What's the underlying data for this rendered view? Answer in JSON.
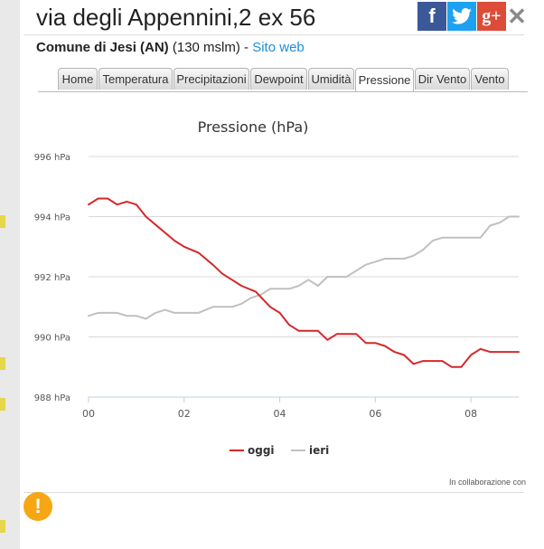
{
  "header": {
    "title": "via degli Appennini,2 ex 56",
    "comune": "Comune di Jesi (AN)",
    "altitude": "(130 mslm)",
    "separator": "-",
    "website_link": "Sito web"
  },
  "social": {
    "facebook_glyph": "f",
    "twitter_icon": "twitter-icon",
    "gplus_glyph": "g+",
    "close_glyph": "✕"
  },
  "tabs": [
    {
      "label": "Home"
    },
    {
      "label": "Temperatura"
    },
    {
      "label": "Precipitazioni"
    },
    {
      "label": "Dewpoint"
    },
    {
      "label": "Umidità"
    },
    {
      "label": "Pressione",
      "active": true
    },
    {
      "label": "Dir Vento"
    },
    {
      "label": "Vento"
    }
  ],
  "footer": {
    "credit": "In collaborazione con"
  },
  "alert_glyph": "!",
  "colors": {
    "oggi": "#d62728",
    "ieri": "#c0c0c0",
    "accent_link": "#1a8fd8",
    "alert": "#f7a614"
  },
  "chart_data": {
    "type": "line",
    "title": "Pressione (hPa)",
    "xlabel": "",
    "ylabel": "",
    "x_ticks": [
      "00",
      "02",
      "04",
      "06",
      "08"
    ],
    "y_ticks": [
      "988 hPa",
      "990 hPa",
      "992 hPa",
      "994 hPa",
      "996 hPa"
    ],
    "ylim": [
      988,
      996
    ],
    "xlim": [
      0,
      9
    ],
    "grid": true,
    "legend_position": "bottom",
    "series": [
      {
        "name": "oggi",
        "x": [
          0,
          0.2,
          0.4,
          0.6,
          0.8,
          1.0,
          1.2,
          1.5,
          1.8,
          2.0,
          2.3,
          2.6,
          2.8,
          3.0,
          3.2,
          3.5,
          3.8,
          4.0,
          4.2,
          4.4,
          4.6,
          4.8,
          5.0,
          5.2,
          5.4,
          5.6,
          5.8,
          6.0,
          6.2,
          6.4,
          6.6,
          6.8,
          7.0,
          7.2,
          7.4,
          7.6,
          7.8,
          8.0,
          8.2,
          8.4,
          8.6,
          8.8,
          9.0
        ],
        "values": [
          994.4,
          994.6,
          994.6,
          994.4,
          994.5,
          994.4,
          994.0,
          993.6,
          993.2,
          993.0,
          992.8,
          992.4,
          992.1,
          991.9,
          991.7,
          991.5,
          991.0,
          990.8,
          990.4,
          990.2,
          990.2,
          990.2,
          989.9,
          990.1,
          990.1,
          990.1,
          989.8,
          989.8,
          989.7,
          989.5,
          989.4,
          989.1,
          989.2,
          989.2,
          989.2,
          989.0,
          989.0,
          989.4,
          989.6,
          989.5,
          989.5,
          989.5,
          989.5
        ]
      },
      {
        "name": "ieri",
        "x": [
          0,
          0.2,
          0.4,
          0.6,
          0.8,
          1.0,
          1.2,
          1.4,
          1.6,
          1.8,
          2.0,
          2.3,
          2.6,
          2.8,
          3.0,
          3.2,
          3.4,
          3.6,
          3.8,
          4.0,
          4.2,
          4.4,
          4.6,
          4.8,
          5.0,
          5.2,
          5.4,
          5.6,
          5.8,
          6.0,
          6.2,
          6.4,
          6.6,
          6.8,
          7.0,
          7.2,
          7.4,
          7.6,
          7.8,
          8.0,
          8.2,
          8.4,
          8.6,
          8.8,
          9.0
        ],
        "values": [
          990.7,
          990.8,
          990.8,
          990.8,
          990.7,
          990.7,
          990.6,
          990.8,
          990.9,
          990.8,
          990.8,
          990.8,
          991.0,
          991.0,
          991.0,
          991.1,
          991.3,
          991.4,
          991.6,
          991.6,
          991.6,
          991.7,
          991.9,
          991.7,
          992.0,
          992.0,
          992.0,
          992.2,
          992.4,
          992.5,
          992.6,
          992.6,
          992.6,
          992.7,
          992.9,
          993.2,
          993.3,
          993.3,
          993.3,
          993.3,
          993.3,
          993.7,
          993.8,
          994.0,
          994.0
        ]
      }
    ]
  }
}
